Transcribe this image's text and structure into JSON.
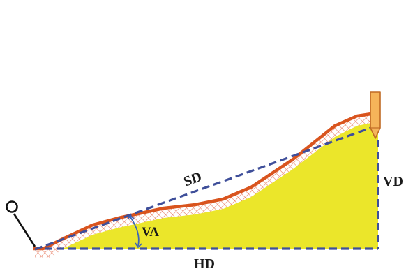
{
  "labels": {
    "sd": "SD",
    "vd": "VD",
    "hd": "HD",
    "va": "VA"
  },
  "colors": {
    "fill": "#ebe62a",
    "slope_line": "#d9541e",
    "hatch": "#e8836a",
    "dashed": "#3f4f9a",
    "arc": "#3c64b8",
    "stake": "#f5b45a",
    "instrument": "#111111"
  },
  "icons": {
    "stake": "survey-stake-icon",
    "instrument": "survey-instrument-icon"
  }
}
